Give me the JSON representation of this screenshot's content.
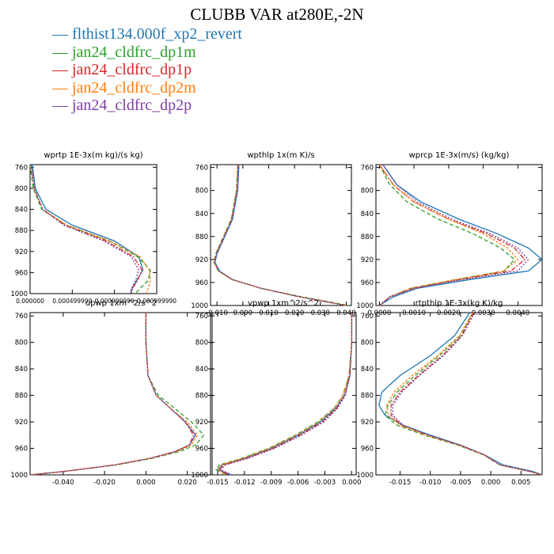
{
  "figure": {
    "title": "CLUBB VAR at280E,-2N",
    "legend": [
      {
        "label": "flthist134.000f_xp2_revert",
        "color": "#1f77b4"
      },
      {
        "label": "jan24_cldfrc_dp1m",
        "color": "#2ca02c"
      },
      {
        "label": "jan24_cldfrc_dp1p",
        "color": "#d62728"
      },
      {
        "label": "jan24_cldfrc_dp2m",
        "color": "#ff7f0e"
      },
      {
        "label": "jan24_cldfrc_dp2p",
        "color": "#7b3fa0"
      }
    ]
  },
  "chart_data": [
    {
      "type": "line",
      "title": "wprtp  1E-3x(m kg)/(s kg)",
      "y_ticks": [
        760,
        800,
        840,
        880,
        920,
        960,
        1000
      ],
      "ylim": [
        1000,
        755
      ],
      "xlim": [
        0.0,
        0.0012
      ],
      "x_tick_labels": [
        "0.000000",
        "0.000499999",
        "0.000999999",
        "0.000999990"
      ],
      "y": [
        755,
        800,
        840,
        870,
        900,
        930,
        955,
        975,
        990,
        1000
      ],
      "series": [
        {
          "name": "flthist134.000f_xp2_revert",
          "values": [
            2e-05,
            5e-05,
            0.00015,
            0.0004,
            0.0008,
            0.00103,
            0.00107,
            0.00101,
            0.00097,
            0.00095
          ]
        },
        {
          "name": "jan24_cldfrc_dp1m",
          "values": [
            0.0,
            3e-05,
            0.00011,
            0.00034,
            0.00075,
            0.00102,
            0.00114,
            0.00112,
            0.00104,
            0.001
          ]
        },
        {
          "name": "jan24_cldfrc_dp1p",
          "values": [
            1e-05,
            4e-05,
            0.00012,
            0.00033,
            0.00072,
            0.00098,
            0.00106,
            0.00102,
            0.00097,
            0.00096
          ]
        },
        {
          "name": "jan24_cldfrc_dp2m",
          "values": [
            1e-05,
            4e-05,
            0.00012,
            0.00035,
            0.00076,
            0.00104,
            0.00113,
            0.00114,
            0.00112,
            0.0011
          ]
        },
        {
          "name": "jan24_cldfrc_dp2p",
          "values": [
            1e-05,
            4e-05,
            0.00012,
            0.00032,
            0.0007,
            0.00096,
            0.00103,
            0.001,
            0.00096,
            0.00095
          ]
        }
      ]
    },
    {
      "type": "line",
      "title": "wpthlp  1x(m K)/s",
      "y_ticks": [
        760,
        800,
        840,
        880,
        920,
        960,
        1000
      ],
      "ylim": [
        1000,
        755
      ],
      "xlim": [
        -0.0125,
        0.042
      ],
      "x_ticks": [
        -0.01,
        0.0,
        0.01,
        0.02,
        0.03,
        0.04
      ],
      "x_tick_labels": [
        "-0.010",
        "0.000",
        "0.010",
        "0.020",
        "0.030",
        "0.040"
      ],
      "y": [
        755,
        800,
        850,
        890,
        910,
        925,
        940,
        955,
        970,
        985,
        1000
      ],
      "series": [
        {
          "name": "flthist134.000f_xp2_revert",
          "values": [
            -0.0015,
            -0.002,
            -0.004,
            -0.008,
            -0.01,
            -0.0108,
            -0.009,
            -0.004,
            0.007,
            0.022,
            0.04
          ]
        },
        {
          "name": "jan24_cldfrc_dp1m",
          "values": [
            -0.002,
            -0.0025,
            -0.0045,
            -0.0085,
            -0.0105,
            -0.0112,
            -0.0095,
            -0.0042,
            0.007,
            0.023,
            0.041
          ]
        },
        {
          "name": "jan24_cldfrc_dp1p",
          "values": [
            -0.0018,
            -0.0023,
            -0.0043,
            -0.0083,
            -0.0103,
            -0.011,
            -0.0093,
            -0.0041,
            0.007,
            0.022,
            0.04
          ]
        },
        {
          "name": "jan24_cldfrc_dp2m",
          "values": [
            -0.0019,
            -0.0024,
            -0.0044,
            -0.0084,
            -0.0104,
            -0.0111,
            -0.0094,
            -0.0042,
            0.007,
            0.022,
            0.04
          ]
        },
        {
          "name": "jan24_cldfrc_dp2p",
          "values": [
            -0.0017,
            -0.0022,
            -0.0042,
            -0.0082,
            -0.0102,
            -0.0109,
            -0.0092,
            -0.004,
            0.007,
            0.022,
            0.04
          ]
        }
      ]
    },
    {
      "type": "line",
      "title": "wprcp  1E-3x(m/s) (kg/kg)",
      "y_ticks": [
        760,
        800,
        840,
        880,
        920,
        960,
        1000
      ],
      "ylim": [
        1000,
        755
      ],
      "xlim": [
        -0.0001,
        0.0047
      ],
      "x_ticks": [
        0.0,
        0.001,
        0.002,
        0.003,
        0.004
      ],
      "x_tick_labels": [
        "0.0000",
        "0.0010",
        "0.0020",
        "0.0030",
        "0.0040"
      ],
      "y": [
        755,
        790,
        820,
        850,
        875,
        900,
        920,
        940,
        955,
        970,
        985,
        1000
      ],
      "series": [
        {
          "name": "flthist134.000f_xp2_revert",
          "values": [
            0.0001,
            0.0005,
            0.0012,
            0.0023,
            0.0034,
            0.0043,
            0.0047,
            0.0043,
            0.0026,
            0.0011,
            0.0004,
            0.0
          ]
        },
        {
          "name": "jan24_cldfrc_dp1m",
          "values": [
            0.0,
            0.0003,
            0.0008,
            0.0017,
            0.0027,
            0.0035,
            0.0039,
            0.0036,
            0.0022,
            0.0009,
            0.0003,
            0.0
          ]
        },
        {
          "name": "jan24_cldfrc_dp1p",
          "values": [
            0.0,
            0.0004,
            0.001,
            0.002,
            0.0031,
            0.0039,
            0.0042,
            0.0038,
            0.0023,
            0.001,
            0.0003,
            0.0
          ]
        },
        {
          "name": "jan24_cldfrc_dp2m",
          "values": [
            0.0,
            0.0004,
            0.001,
            0.002,
            0.003,
            0.0037,
            0.004,
            0.0036,
            0.0022,
            0.0009,
            0.0003,
            0.0
          ]
        },
        {
          "name": "jan24_cldfrc_dp2p",
          "values": [
            0.0001,
            0.0005,
            0.0011,
            0.0021,
            0.0032,
            0.004,
            0.0043,
            0.004,
            0.0024,
            0.001,
            0.0003,
            0.0
          ]
        }
      ]
    },
    {
      "type": "line",
      "title": "upwp  1xm^2/s^2",
      "y_ticks": [
        760,
        800,
        840,
        880,
        920,
        960,
        1000
      ],
      "ylim": [
        1000,
        755
      ],
      "xlim": [
        -0.056,
        0.032
      ],
      "x_ticks": [
        -0.04,
        -0.02,
        0.0,
        0.02
      ],
      "x_tick_labels": [
        "-0.040",
        "-0.020",
        "0.000",
        "0.020"
      ],
      "y": [
        755,
        800,
        850,
        880,
        900,
        920,
        940,
        955,
        965,
        975,
        985,
        995,
        1000
      ],
      "series": [
        {
          "name": "flthist134.000f_xp2_revert",
          "values": [
            0.0,
            0.0,
            0.001,
            0.005,
            0.012,
            0.019,
            0.024,
            0.021,
            0.014,
            0.002,
            -0.015,
            -0.04,
            -0.056
          ]
        },
        {
          "name": "jan24_cldfrc_dp1m",
          "values": [
            0.0,
            0.0,
            0.001,
            0.006,
            0.014,
            0.022,
            0.028,
            0.024,
            0.016,
            0.003,
            -0.014,
            -0.04,
            -0.056
          ]
        },
        {
          "name": "jan24_cldfrc_dp1p",
          "values": [
            0.0,
            0.0,
            0.001,
            0.005,
            0.012,
            0.019,
            0.023,
            0.021,
            0.014,
            0.002,
            -0.015,
            -0.04,
            -0.056
          ]
        },
        {
          "name": "jan24_cldfrc_dp2m",
          "values": [
            0.0,
            0.0,
            0.001,
            0.005,
            0.012,
            0.02,
            0.025,
            0.022,
            0.015,
            0.002,
            -0.015,
            -0.04,
            -0.056
          ]
        },
        {
          "name": "jan24_cldfrc_dp2p",
          "values": [
            0.0,
            0.0,
            0.001,
            0.005,
            0.012,
            0.019,
            0.024,
            0.021,
            0.014,
            0.002,
            -0.015,
            -0.04,
            -0.056
          ]
        }
      ]
    },
    {
      "type": "line",
      "title": "vpwp  1xm^2/s^2",
      "y_ticks": [
        760,
        800,
        840,
        880,
        920,
        960,
        1000
      ],
      "ylim": [
        1000,
        755
      ],
      "xlim": [
        -0.0158,
        0.0005
      ],
      "x_ticks": [
        -0.015,
        -0.012,
        -0.009,
        -0.006,
        -0.003,
        0.0
      ],
      "x_tick_labels": [
        "-0.015",
        "-0.012",
        "-0.009",
        "-0.006",
        "-0.003",
        "0.000"
      ],
      "y": [
        755,
        800,
        850,
        880,
        900,
        920,
        940,
        960,
        975,
        985,
        992,
        1000
      ],
      "series": [
        {
          "name": "flthist134.000f_xp2_revert",
          "values": [
            0.0,
            0.0,
            -0.0002,
            -0.0008,
            -0.0018,
            -0.0035,
            -0.006,
            -0.009,
            -0.012,
            -0.0145,
            -0.015,
            -0.0135
          ]
        },
        {
          "name": "jan24_cldfrc_dp1m",
          "values": [
            0.0,
            0.0,
            -0.0003,
            -0.001,
            -0.002,
            -0.0038,
            -0.0063,
            -0.0093,
            -0.0123,
            -0.0148,
            -0.0152,
            -0.014
          ]
        },
        {
          "name": "jan24_cldfrc_dp1p",
          "values": [
            0.0,
            0.0,
            -0.0002,
            -0.0008,
            -0.0017,
            -0.0033,
            -0.0058,
            -0.0088,
            -0.0118,
            -0.0143,
            -0.0148,
            -0.0138
          ]
        },
        {
          "name": "jan24_cldfrc_dp2m",
          "values": [
            0.0,
            0.0,
            -0.0003,
            -0.001,
            -0.002,
            -0.0037,
            -0.0062,
            -0.0092,
            -0.0122,
            -0.0146,
            -0.015,
            -0.0142
          ]
        },
        {
          "name": "jan24_cldfrc_dp2p",
          "values": [
            0.0,
            0.0,
            -0.0002,
            -0.0007,
            -0.0016,
            -0.0031,
            -0.0056,
            -0.0086,
            -0.0116,
            -0.0141,
            -0.0147,
            -0.0134
          ]
        }
      ]
    },
    {
      "type": "line",
      "title": "rtpthlp  1E-3x(kg K)/kg",
      "y_ticks": [
        760,
        800,
        840,
        880,
        920,
        960,
        1000
      ],
      "ylim": [
        1000,
        755
      ],
      "xlim": [
        -0.019,
        0.0085
      ],
      "x_ticks": [
        -0.015,
        -0.01,
        -0.005,
        0.0,
        0.005
      ],
      "x_tick_labels": [
        "-0.015",
        "-0.010",
        "-0.005",
        "0.000",
        "0.005"
      ],
      "y": [
        755,
        790,
        820,
        850,
        875,
        895,
        910,
        925,
        940,
        955,
        970,
        985,
        995,
        1000
      ],
      "series": [
        {
          "name": "flthist134.000f_xp2_revert",
          "values": [
            -0.0035,
            -0.006,
            -0.01,
            -0.015,
            -0.018,
            -0.0185,
            -0.0175,
            -0.0145,
            -0.01,
            -0.005,
            -0.001,
            0.002,
            0.007,
            0.0085
          ]
        },
        {
          "name": "jan24_cldfrc_dp1m",
          "values": [
            -0.003,
            -0.005,
            -0.0085,
            -0.0125,
            -0.0155,
            -0.017,
            -0.0175,
            -0.0155,
            -0.011,
            -0.0055,
            -0.0012,
            0.0015,
            0.0065,
            0.0085
          ]
        },
        {
          "name": "jan24_cldfrc_dp1p",
          "values": [
            -0.0028,
            -0.0048,
            -0.008,
            -0.012,
            -0.015,
            -0.0165,
            -0.0165,
            -0.0148,
            -0.0105,
            -0.0052,
            -0.001,
            0.0015,
            0.0065,
            0.0085
          ]
        },
        {
          "name": "jan24_cldfrc_dp2m",
          "values": [
            -0.003,
            -0.0052,
            -0.0088,
            -0.013,
            -0.016,
            -0.0172,
            -0.017,
            -0.015,
            -0.0107,
            -0.0053,
            -0.0011,
            0.0015,
            0.0065,
            0.0085
          ]
        },
        {
          "name": "jan24_cldfrc_dp2p",
          "values": [
            -0.0027,
            -0.0047,
            -0.0078,
            -0.0118,
            -0.0147,
            -0.0162,
            -0.0162,
            -0.0145,
            -0.0103,
            -0.0051,
            -0.001,
            0.0015,
            0.0065,
            0.0085
          ]
        }
      ]
    }
  ]
}
